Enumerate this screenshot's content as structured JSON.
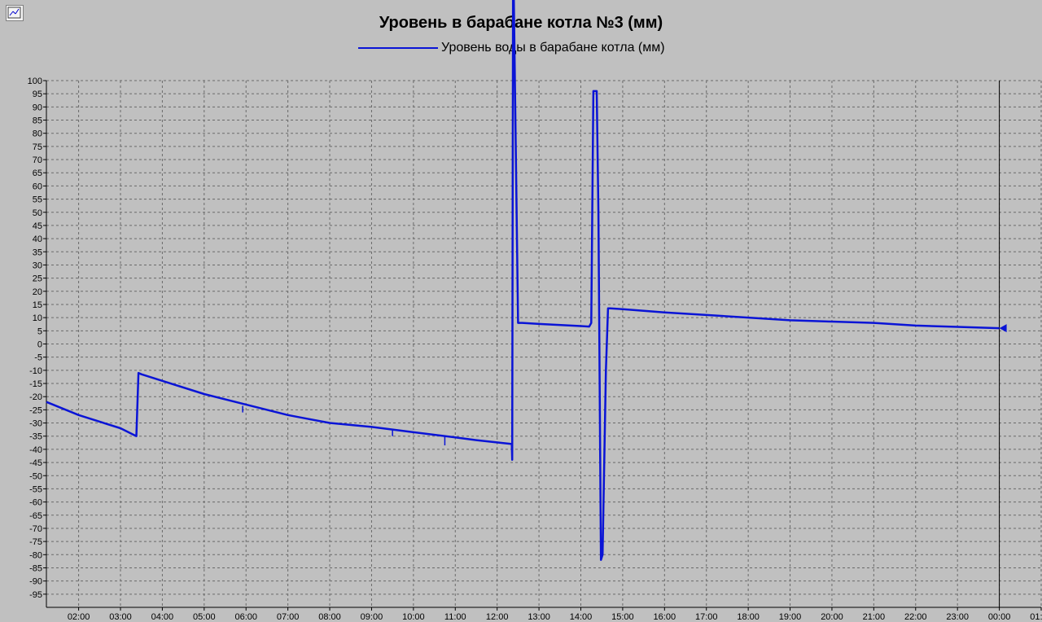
{
  "toolbar": {
    "chart_button_icon": "chart-settings-icon"
  },
  "chart_data": {
    "type": "line",
    "title": "Уровень в барабане котла №3 (мм)",
    "xlabel": "",
    "ylabel": "",
    "x_tick_labels": [
      "02:00",
      "03:00",
      "04:00",
      "05:00",
      "06:00",
      "07:00",
      "08:00",
      "09:00",
      "10:00",
      "11:00",
      "12:00",
      "13:00",
      "14:00",
      "15:00",
      "16:00",
      "17:00",
      "18:00",
      "19:00",
      "20:00",
      "21:00",
      "22:00",
      "23:00",
      "00:00",
      "01:00"
    ],
    "y_tick_labels": [
      "100",
      "95",
      "90",
      "85",
      "80",
      "75",
      "70",
      "65",
      "60",
      "55",
      "50",
      "45",
      "40",
      "35",
      "30",
      "25",
      "20",
      "15",
      "10",
      "5",
      "0",
      "-5",
      "-10",
      "-15",
      "-20",
      "-25",
      "-30",
      "-35",
      "-40",
      "-45",
      "-50",
      "-55",
      "-60",
      "-65",
      "-70",
      "-75",
      "-80",
      "-85",
      "-90",
      "-95"
    ],
    "ylim": [
      -100,
      100
    ],
    "x_unit": "hour of day (24+ = next day)",
    "xlim": [
      1.23,
      25.0
    ],
    "grid": true,
    "legend_position": "top-center",
    "cursor_x": 24.0,
    "series": [
      {
        "name": "Уровень воды в барабане котла (мм)",
        "color": "#0a14d6",
        "x": [
          1.23,
          2.0,
          3.0,
          3.38,
          3.43,
          3.5,
          4.0,
          5.0,
          6.0,
          7.0,
          7.5,
          8.0,
          9.0,
          10.0,
          11.0,
          11.5,
          12.35,
          12.36,
          12.38,
          12.4,
          12.5,
          12.55,
          12.6,
          13.0,
          14.0,
          14.2,
          14.25,
          14.3,
          14.38,
          14.42,
          14.48,
          14.52,
          14.6,
          14.65,
          14.7,
          15.0,
          16.0,
          17.0,
          18.0,
          19.0,
          20.0,
          21.0,
          22.0,
          23.0,
          24.0
        ],
        "y": [
          -22,
          -27,
          -32,
          -35,
          -11,
          -11.5,
          -14,
          -19,
          -23,
          -27,
          -28.5,
          -30,
          -31.5,
          -33.5,
          -35.5,
          -36.5,
          -38,
          -44,
          100,
          100,
          8,
          8,
          8,
          7.6,
          6.8,
          6.6,
          8,
          96,
          96,
          50,
          -82,
          -80,
          -10,
          13.5,
          13.5,
          13.2,
          12,
          11,
          10,
          9,
          8.5,
          8,
          7,
          6.5,
          6
        ]
      }
    ]
  }
}
